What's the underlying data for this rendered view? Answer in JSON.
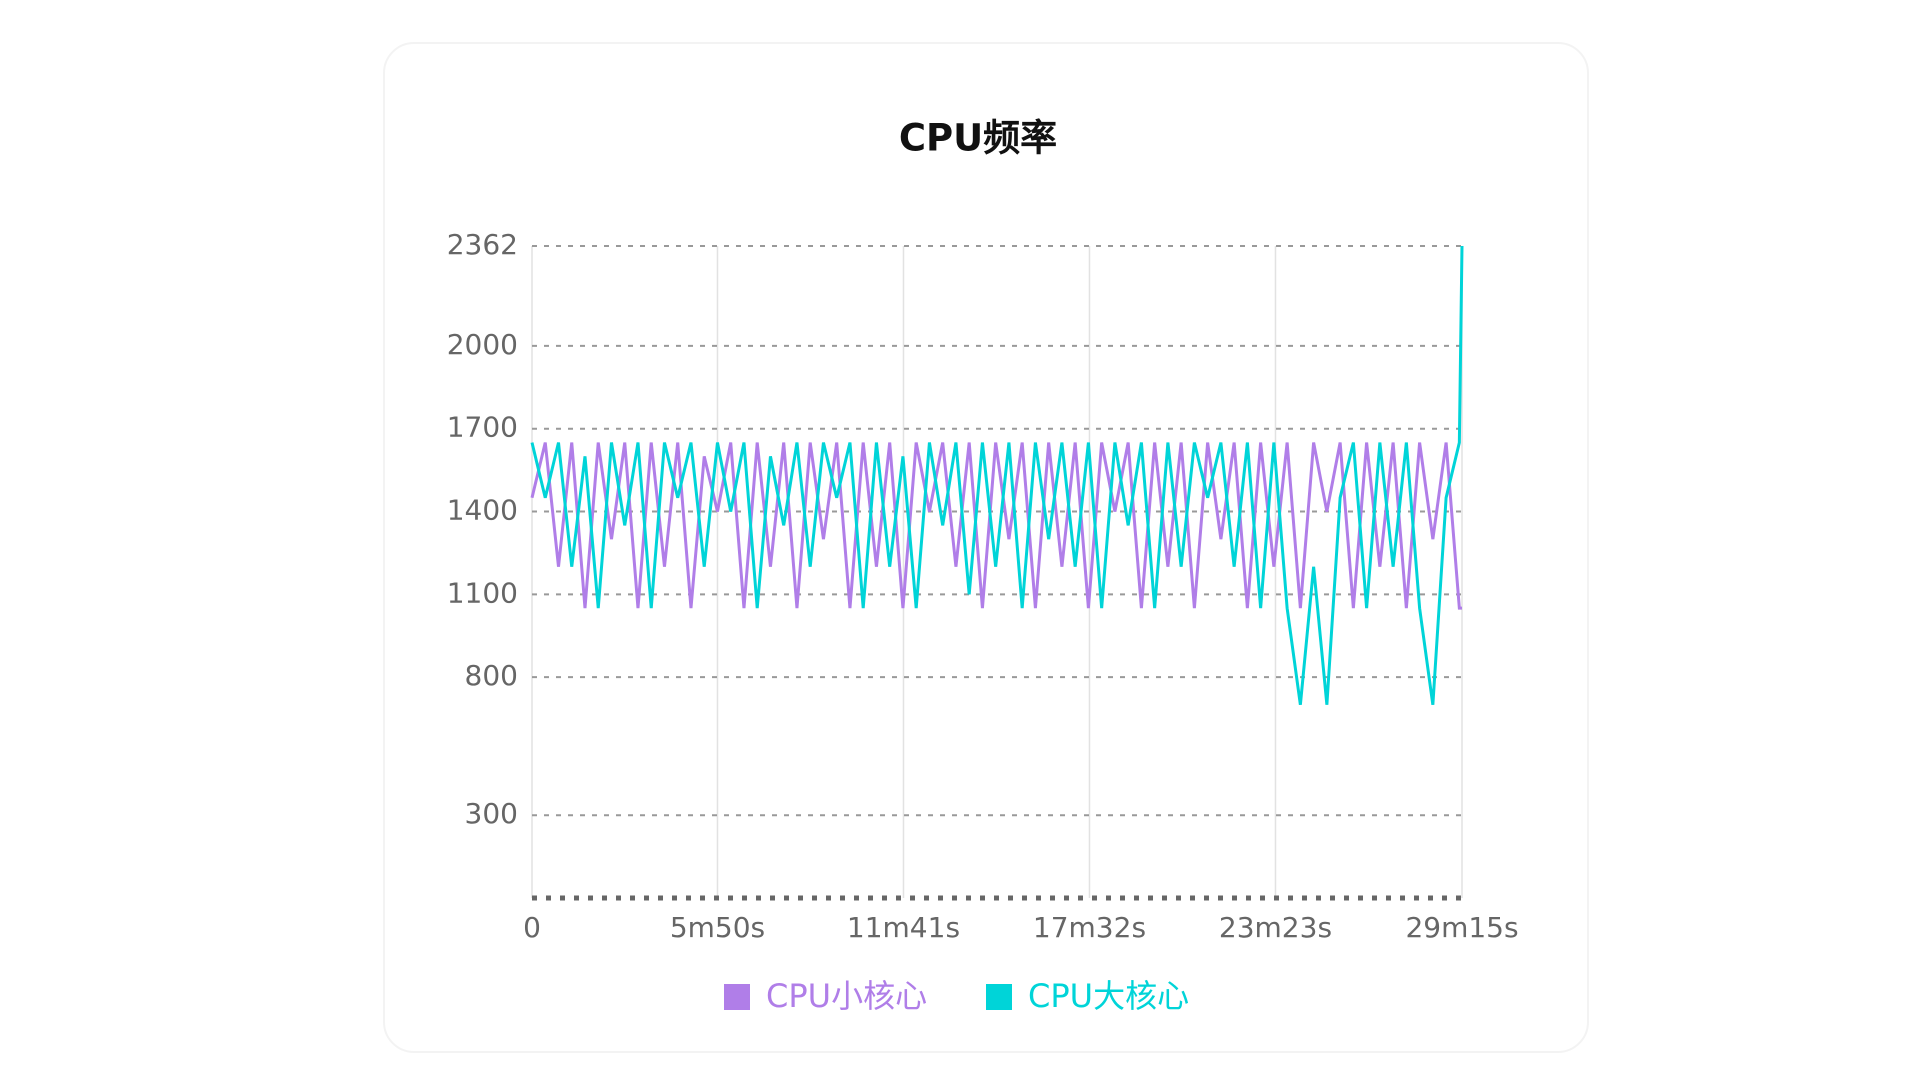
{
  "chart_data": {
    "type": "line",
    "title": "CPU频率",
    "x": [
      0,
      25,
      50,
      75,
      100,
      125,
      150,
      175,
      200,
      225,
      250,
      275,
      300,
      325,
      350,
      375,
      400,
      425,
      450,
      475,
      500,
      525,
      550,
      575,
      600,
      625,
      650,
      675,
      700,
      725,
      750,
      775,
      800,
      825,
      850,
      875,
      900,
      925,
      950,
      975,
      1000,
      1025,
      1050,
      1075,
      1100,
      1125,
      1150,
      1175,
      1200,
      1225,
      1250,
      1275,
      1300,
      1325,
      1350,
      1375,
      1400,
      1425,
      1450,
      1475,
      1500,
      1525,
      1550,
      1575,
      1600,
      1625,
      1650,
      1675,
      1700,
      1725,
      1750,
      1755
    ],
    "series": [
      {
        "name": "CPU小核心",
        "color": "#b07ee8",
        "values": [
          1450,
          1650,
          1200,
          1650,
          1050,
          1650,
          1300,
          1650,
          1050,
          1650,
          1200,
          1650,
          1050,
          1600,
          1400,
          1650,
          1050,
          1650,
          1200,
          1650,
          1050,
          1650,
          1300,
          1650,
          1050,
          1650,
          1200,
          1650,
          1050,
          1650,
          1400,
          1650,
          1200,
          1650,
          1050,
          1650,
          1300,
          1650,
          1050,
          1650,
          1200,
          1650,
          1050,
          1650,
          1400,
          1650,
          1050,
          1650,
          1200,
          1650,
          1050,
          1650,
          1300,
          1650,
          1050,
          1650,
          1200,
          1650,
          1050,
          1650,
          1400,
          1650,
          1050,
          1650,
          1200,
          1650,
          1050,
          1650,
          1300,
          1650,
          1050,
          1050
        ]
      },
      {
        "name": "CPU大核心",
        "color": "#00d4d8",
        "values": [
          1650,
          1450,
          1650,
          1200,
          1600,
          1050,
          1650,
          1350,
          1650,
          1050,
          1650,
          1450,
          1650,
          1200,
          1650,
          1400,
          1650,
          1050,
          1600,
          1350,
          1650,
          1200,
          1650,
          1450,
          1650,
          1050,
          1650,
          1200,
          1600,
          1050,
          1650,
          1350,
          1650,
          1100,
          1650,
          1200,
          1650,
          1050,
          1650,
          1300,
          1650,
          1200,
          1650,
          1050,
          1650,
          1350,
          1650,
          1050,
          1650,
          1200,
          1650,
          1450,
          1650,
          1200,
          1650,
          1050,
          1650,
          1050,
          700,
          1200,
          700,
          1450,
          1650,
          1050,
          1650,
          1200,
          1650,
          1050,
          700,
          1450,
          1650,
          2362
        ]
      }
    ],
    "xlim": [
      0,
      1755
    ],
    "xticks": [
      0,
      {
        "value": 350,
        "label": "5m50s"
      },
      {
        "value": 701,
        "label": "11m41s"
      },
      {
        "value": 1052,
        "label": "17m32s"
      },
      {
        "value": 1403,
        "label": "23m23s"
      },
      {
        "value": 1755,
        "label": "29m15s"
      }
    ],
    "ylim": [
      0,
      2362
    ],
    "yticks": [
      300,
      800,
      1100,
      1400,
      1700,
      2000,
      2362
    ],
    "grid": true
  }
}
